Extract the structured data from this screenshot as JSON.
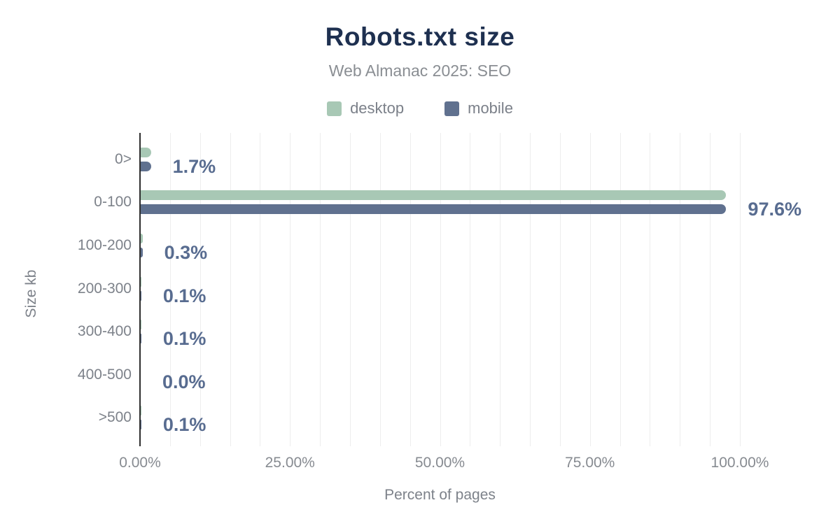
{
  "figure": {
    "title": "Robots.txt size",
    "subtitle": "Web Almanac 2025: SEO"
  },
  "chart_data": {
    "type": "bar",
    "orientation": "horizontal",
    "title": "Robots.txt size",
    "subtitle": "Web Almanac 2025: SEO",
    "categories": [
      "0>",
      "0-100",
      "100-200",
      "200-300",
      "300-400",
      "400-500",
      ">500"
    ],
    "series": [
      {
        "name": "desktop",
        "color": "#a8c8b5",
        "values": [
          1.7,
          97.5,
          0.3,
          0.1,
          0.1,
          0.0,
          0.1
        ]
      },
      {
        "name": "mobile",
        "color": "#60718f",
        "values": [
          1.7,
          97.6,
          0.3,
          0.1,
          0.1,
          0.0,
          0.1
        ]
      }
    ],
    "value_labels": [
      "1.7%",
      "97.6%",
      "0.3%",
      "0.1%",
      "0.1%",
      "0.0%",
      "0.1%"
    ],
    "xlabel": "Percent of pages",
    "ylabel": "Size kb",
    "x_ticks": [
      "0.00%",
      "25.00%",
      "50.00%",
      "75.00%",
      "100.00%"
    ],
    "x_tick_values": [
      0,
      25,
      50,
      75,
      100
    ],
    "xlim": [
      0,
      112
    ],
    "gridline_step": 5,
    "grid": true,
    "legend_position": "top",
    "colors": {
      "title": "#1e3050",
      "subtitle": "#8a8e93",
      "value_label": "#586c90",
      "axis_text": "#7d828a",
      "axis_line": "#2e2e2e",
      "gridline": "#ededed",
      "background": "#ffffff"
    }
  }
}
